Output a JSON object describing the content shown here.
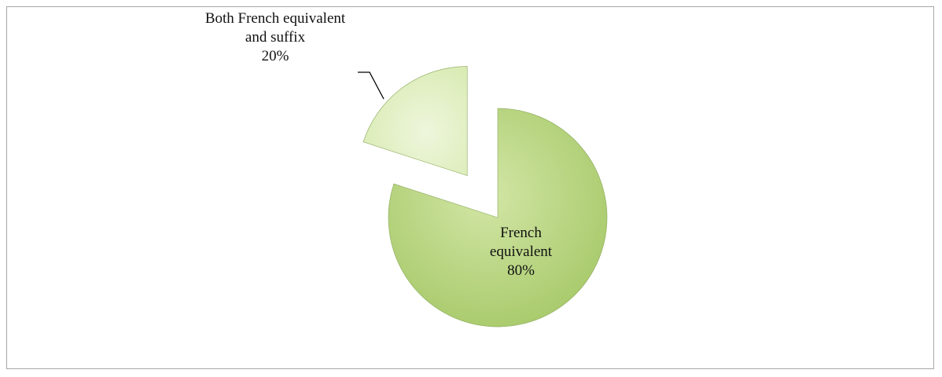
{
  "chart_data": {
    "type": "pie",
    "categories": [
      "French equivalent",
      "Both French equivalent and suffix"
    ],
    "values": [
      80,
      20
    ],
    "value_labels": [
      "80%",
      "20%"
    ],
    "colors": [
      "#b5d57a",
      "#e4f1c8"
    ]
  }
}
